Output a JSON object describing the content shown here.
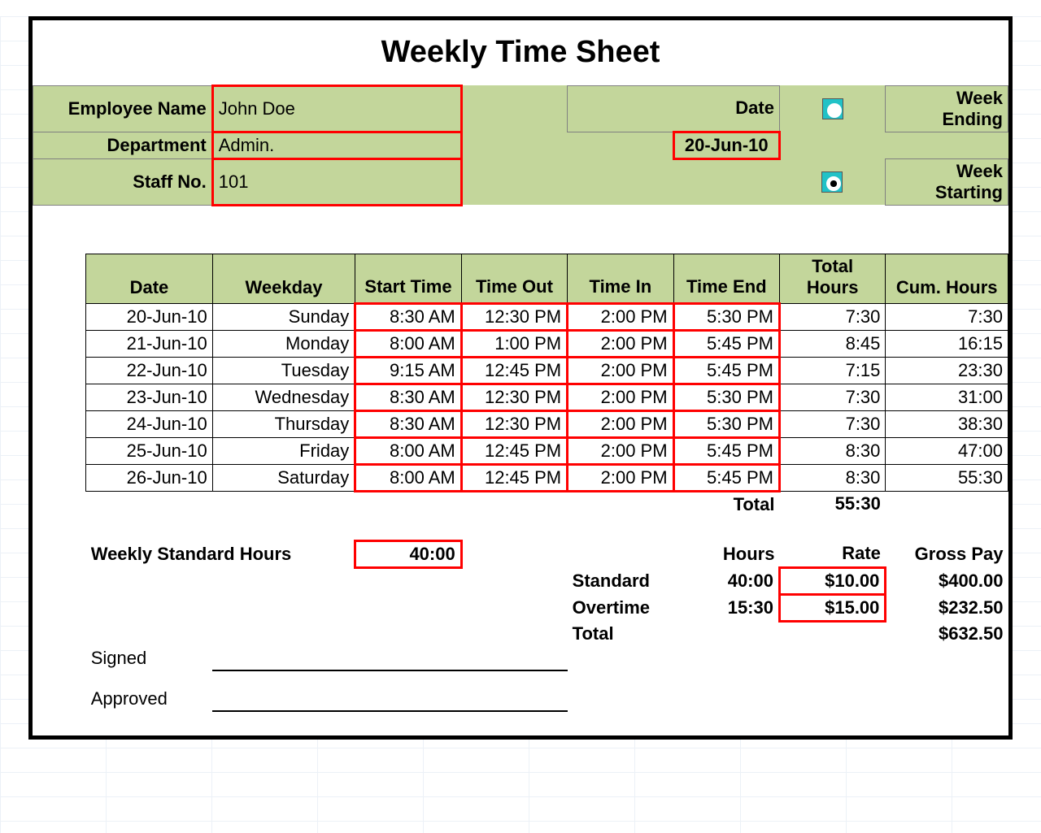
{
  "title": "Weekly Time Sheet",
  "colors": {
    "header_bg": "#c3d69b",
    "highlight_border": "#ff0000",
    "radio_bg": "#21c2c7",
    "grid_line": "#dbe5f1",
    "frame_border": "#000000"
  },
  "employee": {
    "name_label": "Employee Name",
    "name_value": "John Doe",
    "department_label": "Department",
    "department_value": "Admin.",
    "staff_no_label": "Staff No.",
    "staff_no_value": "101"
  },
  "date_section": {
    "date_label": "Date",
    "date_value": "20-Jun-10",
    "week_ending_label": "Week Ending",
    "week_starting_label": "Week Starting",
    "week_option_selected": "starting"
  },
  "columns": {
    "date": "Date",
    "weekday": "Weekday",
    "start_time": "Start Time",
    "time_out": "Time Out",
    "time_in": "Time In",
    "time_end": "Time End",
    "total_hours": "Total Hours",
    "cum_hours": "Cum. Hours"
  },
  "rows": [
    {
      "date": "20-Jun-10",
      "weekday": "Sunday",
      "start": "8:30 AM",
      "out": "12:30 PM",
      "in": "2:00 PM",
      "end": "5:30 PM",
      "total": "7:30",
      "cum": "7:30"
    },
    {
      "date": "21-Jun-10",
      "weekday": "Monday",
      "start": "8:00 AM",
      "out": "1:00 PM",
      "in": "2:00 PM",
      "end": "5:45 PM",
      "total": "8:45",
      "cum": "16:15"
    },
    {
      "date": "22-Jun-10",
      "weekday": "Tuesday",
      "start": "9:15 AM",
      "out": "12:45 PM",
      "in": "2:00 PM",
      "end": "5:45 PM",
      "total": "7:15",
      "cum": "23:30"
    },
    {
      "date": "23-Jun-10",
      "weekday": "Wednesday",
      "start": "8:30 AM",
      "out": "12:30 PM",
      "in": "2:00 PM",
      "end": "5:30 PM",
      "total": "7:30",
      "cum": "31:00"
    },
    {
      "date": "24-Jun-10",
      "weekday": "Thursday",
      "start": "8:30 AM",
      "out": "12:30 PM",
      "in": "2:00 PM",
      "end": "5:30 PM",
      "total": "7:30",
      "cum": "38:30"
    },
    {
      "date": "25-Jun-10",
      "weekday": "Friday",
      "start": "8:00 AM",
      "out": "12:45 PM",
      "in": "2:00 PM",
      "end": "5:45 PM",
      "total": "8:30",
      "cum": "47:00"
    },
    {
      "date": "26-Jun-10",
      "weekday": "Saturday",
      "start": "8:00 AM",
      "out": "12:45 PM",
      "in": "2:00 PM",
      "end": "5:45 PM",
      "total": "8:30",
      "cum": "55:30"
    }
  ],
  "totals": {
    "total_label": "Total",
    "total_hours": "55:30"
  },
  "standard": {
    "label": "Weekly Standard Hours",
    "value": "40:00"
  },
  "pay": {
    "hours_label": "Hours",
    "rate_label": "Rate",
    "gross_label": "Gross Pay",
    "standard_label": "Standard",
    "overtime_label": "Overtime",
    "total_label": "Total",
    "standard_hours": "40:00",
    "standard_rate": "$10.00",
    "standard_gross": "$400.00",
    "overtime_hours": "15:30",
    "overtime_rate": "$15.00",
    "overtime_gross": "$232.50",
    "total_gross": "$632.50"
  },
  "signatures": {
    "signed_label": "Signed",
    "approved_label": "Approved"
  }
}
